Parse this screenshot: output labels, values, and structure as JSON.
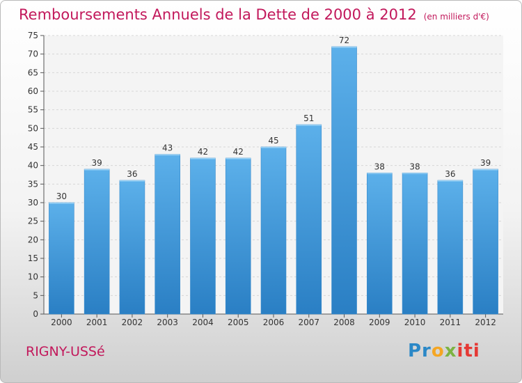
{
  "title": "Remboursements Annuels de la Dette de 2000 à 2012",
  "unit_label": "(en milliers d'€)",
  "commune": "RIGNY-USSé",
  "logo": {
    "text": "Proxiti",
    "parts": [
      "Pr",
      "o",
      "x",
      "iti"
    ]
  },
  "colors": {
    "bar": "#3d8fd0",
    "bar_light": "#5aaee8",
    "title": "#c2185b"
  },
  "chart_data": {
    "type": "bar",
    "categories": [
      "2000",
      "2001",
      "2002",
      "2003",
      "2004",
      "2005",
      "2006",
      "2007",
      "2008",
      "2009",
      "2010",
      "2011",
      "2012"
    ],
    "values": [
      30,
      39,
      36,
      43,
      42,
      42,
      45,
      51,
      72,
      38,
      38,
      36,
      39
    ],
    "data_labels": [
      "30",
      "39",
      "36",
      "43",
      "42",
      "42",
      "45",
      "51",
      "72",
      "38",
      "38",
      "36",
      "39"
    ],
    "y_ticks": [
      0,
      5,
      10,
      15,
      20,
      25,
      30,
      35,
      40,
      45,
      50,
      55,
      60,
      65,
      70,
      75
    ],
    "ylim": [
      0,
      75
    ],
    "grid": true
  }
}
